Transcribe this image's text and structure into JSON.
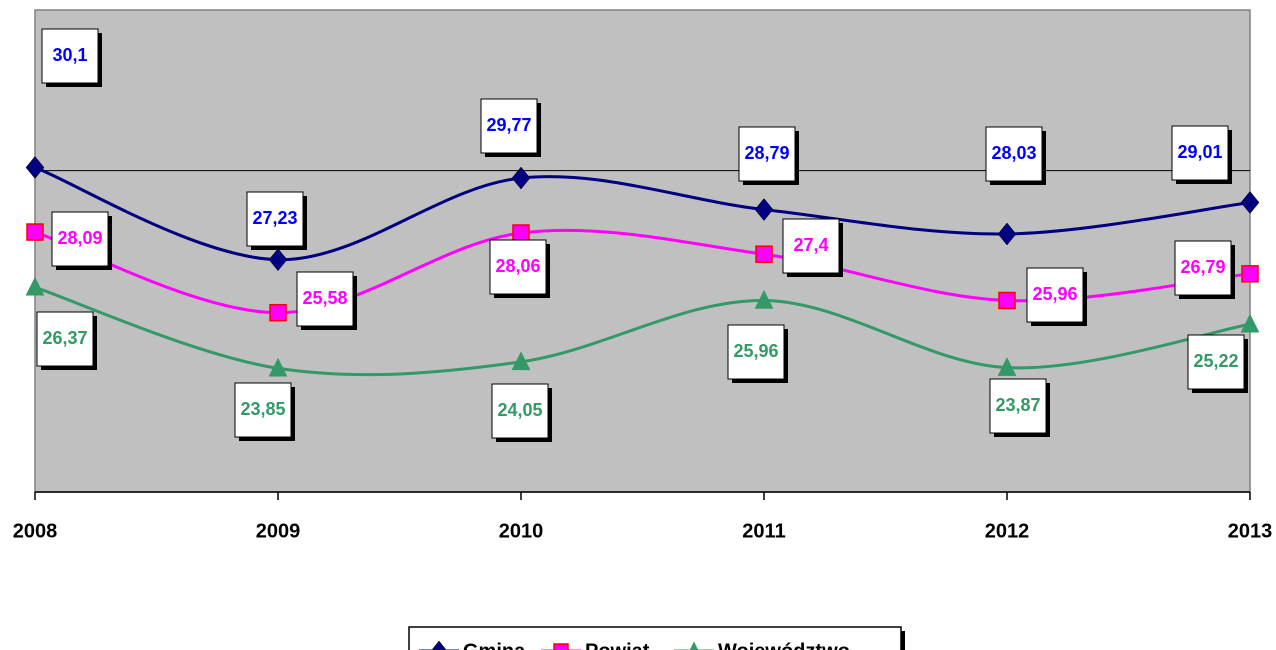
{
  "chart_data": {
    "type": "line",
    "categories": [
      "2008",
      "2009",
      "2010",
      "2011",
      "2012",
      "2013"
    ],
    "series": [
      {
        "name": "Gmina",
        "color": "#000080",
        "marker": "diamond",
        "values": [
          30.1,
          27.23,
          29.77,
          28.79,
          28.03,
          29.01
        ],
        "value_labels": [
          "30,1",
          "27,23",
          "29,77",
          "28,79",
          "28,03",
          "29,01"
        ]
      },
      {
        "name": "Powiat",
        "color": "#ff00ff",
        "marker": "square",
        "values": [
          28.09,
          25.58,
          28.06,
          27.4,
          25.96,
          26.79
        ],
        "value_labels": [
          "28,09",
          "25,58",
          "28,06",
          "27,4",
          "25,96",
          "26,79"
        ]
      },
      {
        "name": "Województwo",
        "color": "#339966",
        "marker": "triangle",
        "values": [
          26.37,
          23.85,
          24.05,
          25.96,
          23.87,
          25.22
        ],
        "value_labels": [
          "26,37",
          "23,85",
          "24,05",
          "25,96",
          "23,87",
          "25,22"
        ]
      }
    ],
    "ylim": [
      20,
      35
    ],
    "yticks": [
      20,
      30
    ],
    "grid": true,
    "smooth": true,
    "legend": "bottom"
  }
}
